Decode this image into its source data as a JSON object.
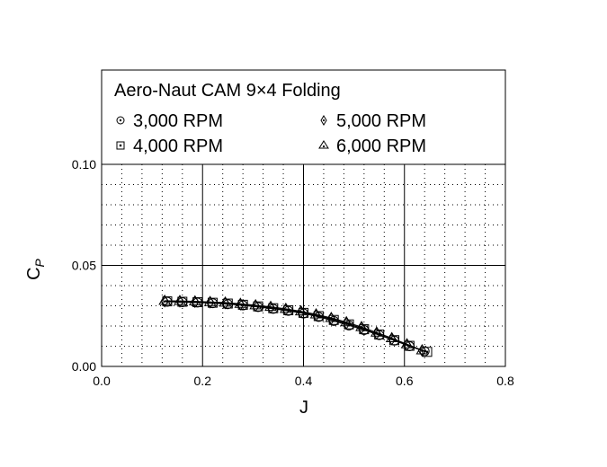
{
  "chart_data": {
    "type": "scatter",
    "title": "Aero-Naut CAM 9×4 Folding",
    "xlabel": "J",
    "ylabel_main": "C",
    "ylabel_sub": "P",
    "xlim": [
      0,
      0.8
    ],
    "ylim": [
      0,
      0.1
    ],
    "x_ticks": [
      {
        "value": 0.0,
        "label": "0.0"
      },
      {
        "value": 0.2,
        "label": "0.2"
      },
      {
        "value": 0.4,
        "label": "0.4"
      },
      {
        "value": 0.6,
        "label": "0.6"
      },
      {
        "value": 0.8,
        "label": "0.8"
      }
    ],
    "y_ticks": [
      {
        "value": 0.0,
        "label": "0.00"
      },
      {
        "value": 0.05,
        "label": "0.05"
      },
      {
        "value": 0.1,
        "label": "0.10"
      }
    ],
    "grid": true,
    "legend_position": "top",
    "series": [
      {
        "name": "3,000 RPM",
        "marker": "circle",
        "x": [
          0.13,
          0.16,
          0.19,
          0.22,
          0.25,
          0.28,
          0.31,
          0.34,
          0.37,
          0.4,
          0.43,
          0.46,
          0.49,
          0.52,
          0.55,
          0.58,
          0.61,
          0.64
        ],
        "y": [
          0.032,
          0.0318,
          0.0316,
          0.0313,
          0.0308,
          0.0302,
          0.0294,
          0.0285,
          0.0275,
          0.0262,
          0.0245,
          0.0225,
          0.0203,
          0.018,
          0.0155,
          0.0128,
          0.01,
          0.0075
        ]
      },
      {
        "name": "4,000 RPM",
        "marker": "square",
        "x": [
          0.13,
          0.16,
          0.19,
          0.22,
          0.25,
          0.28,
          0.31,
          0.34,
          0.37,
          0.4,
          0.43,
          0.46,
          0.49,
          0.52,
          0.55,
          0.58,
          0.61,
          0.645
        ],
        "y": [
          0.0322,
          0.032,
          0.0318,
          0.0315,
          0.0311,
          0.0305,
          0.0297,
          0.0288,
          0.0278,
          0.0265,
          0.0249,
          0.023,
          0.0208,
          0.0184,
          0.0158,
          0.013,
          0.0102,
          0.0072
        ]
      },
      {
        "name": "5,000 RPM",
        "marker": "diamond",
        "x": [
          0.125,
          0.155,
          0.185,
          0.215,
          0.245,
          0.275,
          0.305,
          0.335,
          0.365,
          0.395,
          0.425,
          0.455,
          0.485,
          0.515,
          0.545,
          0.575,
          0.605,
          0.635
        ],
        "y": [
          0.0322,
          0.0321,
          0.0319,
          0.0317,
          0.0313,
          0.0307,
          0.03,
          0.0291,
          0.0281,
          0.0269,
          0.0254,
          0.0236,
          0.0214,
          0.019,
          0.0163,
          0.0135,
          0.0106,
          0.0078
        ]
      },
      {
        "name": "6,000 RPM",
        "marker": "triangle",
        "x": [
          0.125,
          0.155,
          0.185,
          0.215,
          0.245,
          0.275,
          0.305,
          0.335,
          0.365,
          0.395,
          0.425,
          0.455,
          0.485,
          0.515,
          0.545,
          0.575,
          0.605,
          0.635
        ],
        "y": [
          0.0325,
          0.0324,
          0.0322,
          0.0319,
          0.0316,
          0.031,
          0.0303,
          0.0295,
          0.0285,
          0.0273,
          0.0258,
          0.024,
          0.0219,
          0.0195,
          0.0168,
          0.014,
          0.011,
          0.008
        ]
      }
    ]
  }
}
